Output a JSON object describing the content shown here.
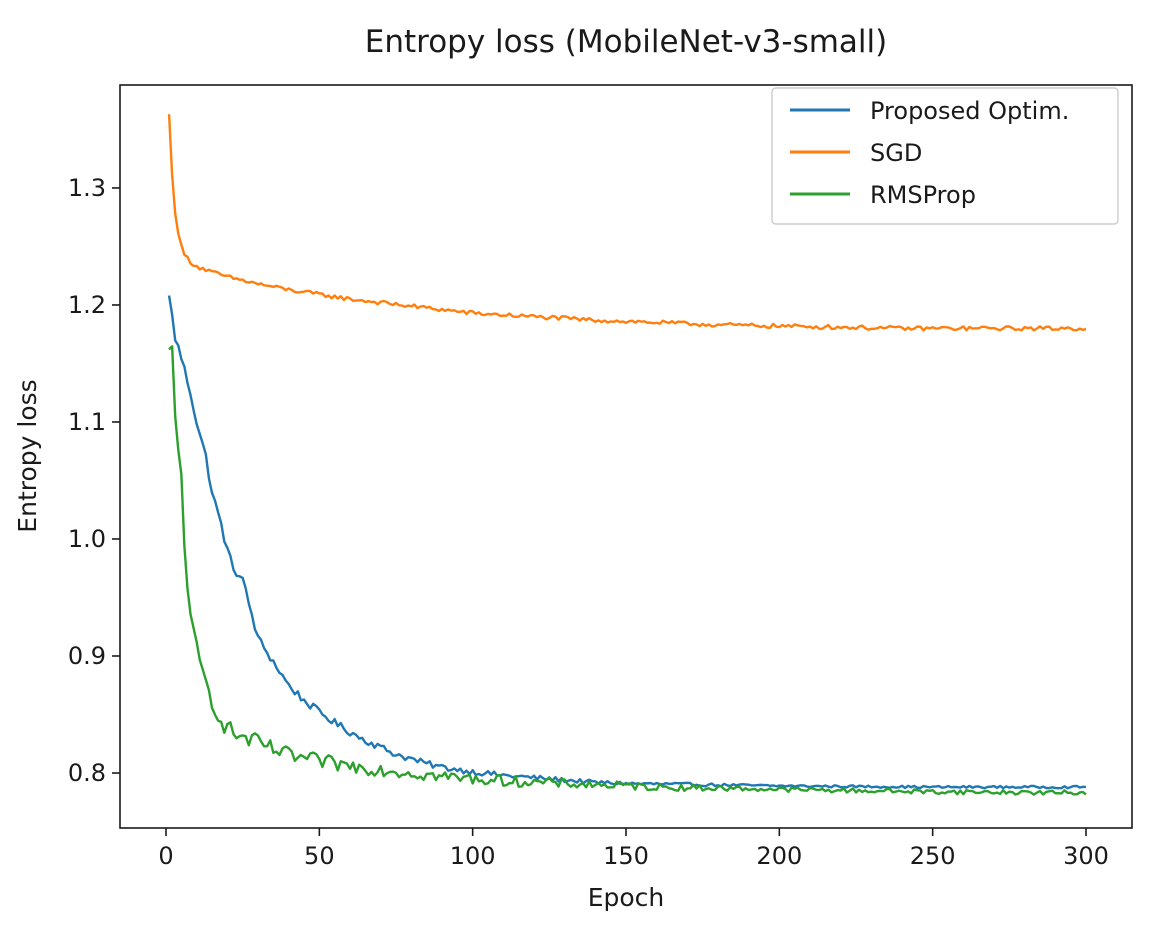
{
  "chart_data": {
    "type": "line",
    "title": "Entropy loss (MobileNet-v3-small)",
    "xlabel": "Epoch",
    "ylabel": "Entropy loss",
    "xlim": [
      -15,
      315
    ],
    "ylim": [
      0.753,
      1.388
    ],
    "xticks": [
      0,
      50,
      100,
      150,
      200,
      250,
      300
    ],
    "xtick_labels": [
      "0",
      "50",
      "100",
      "150",
      "200",
      "250",
      "300"
    ],
    "yticks": [
      0.8,
      0.9,
      1.0,
      1.1,
      1.2,
      1.3
    ],
    "ytick_labels": [
      "0.8",
      "0.9",
      "1.0",
      "1.1",
      "1.2",
      "1.3"
    ],
    "grid": false,
    "legend_position": "top-right",
    "series": [
      {
        "name": "Proposed Optim.",
        "color": "#1f77b4",
        "key_epochs": [
          1,
          2,
          3,
          5,
          8,
          10,
          13,
          15,
          18,
          20,
          22,
          25,
          28,
          30,
          35,
          40,
          45,
          50,
          55,
          60,
          65,
          70,
          75,
          80,
          85,
          90,
          95,
          100,
          110,
          120,
          130,
          140,
          150,
          175,
          200,
          250,
          300
        ],
        "key_values": [
          1.208,
          1.19,
          1.172,
          1.155,
          1.125,
          1.1,
          1.07,
          1.04,
          1.012,
          0.99,
          0.975,
          0.965,
          0.935,
          0.915,
          0.895,
          0.875,
          0.862,
          0.852,
          0.843,
          0.835,
          0.828,
          0.822,
          0.816,
          0.812,
          0.808,
          0.805,
          0.803,
          0.801,
          0.798,
          0.796,
          0.794,
          0.792,
          0.791,
          0.79,
          0.789,
          0.788,
          0.788
        ],
        "noise": 0.004
      },
      {
        "name": "SGD",
        "color": "#ff7f0e",
        "key_epochs": [
          1,
          2,
          3,
          4,
          5,
          6,
          8,
          10,
          15,
          20,
          30,
          40,
          50,
          60,
          70,
          80,
          90,
          100,
          120,
          140,
          160,
          180,
          200,
          220,
          240,
          260,
          280,
          300
        ],
        "key_values": [
          1.363,
          1.31,
          1.28,
          1.262,
          1.25,
          1.243,
          1.237,
          1.233,
          1.228,
          1.224,
          1.218,
          1.213,
          1.209,
          1.205,
          1.202,
          1.199,
          1.196,
          1.193,
          1.19,
          1.187,
          1.185,
          1.183,
          1.182,
          1.181,
          1.18,
          1.18,
          1.18,
          1.18
        ],
        "noise": 0.0018
      },
      {
        "name": "RMSProp",
        "color": "#2ca02c",
        "key_epochs": [
          1,
          2,
          3,
          4,
          5,
          6,
          7,
          8,
          10,
          12,
          15,
          18,
          20,
          25,
          30,
          35,
          40,
          50,
          60,
          70,
          80,
          90,
          100,
          120,
          140,
          160,
          180,
          200,
          250,
          300
        ],
        "key_values": [
          1.162,
          1.16,
          1.1,
          1.075,
          1.055,
          1.0,
          0.96,
          0.93,
          0.905,
          0.885,
          0.862,
          0.845,
          0.838,
          0.83,
          0.826,
          0.82,
          0.815,
          0.81,
          0.806,
          0.803,
          0.8,
          0.797,
          0.795,
          0.792,
          0.79,
          0.788,
          0.787,
          0.786,
          0.784,
          0.783
        ],
        "noise": 0.008
      }
    ]
  }
}
